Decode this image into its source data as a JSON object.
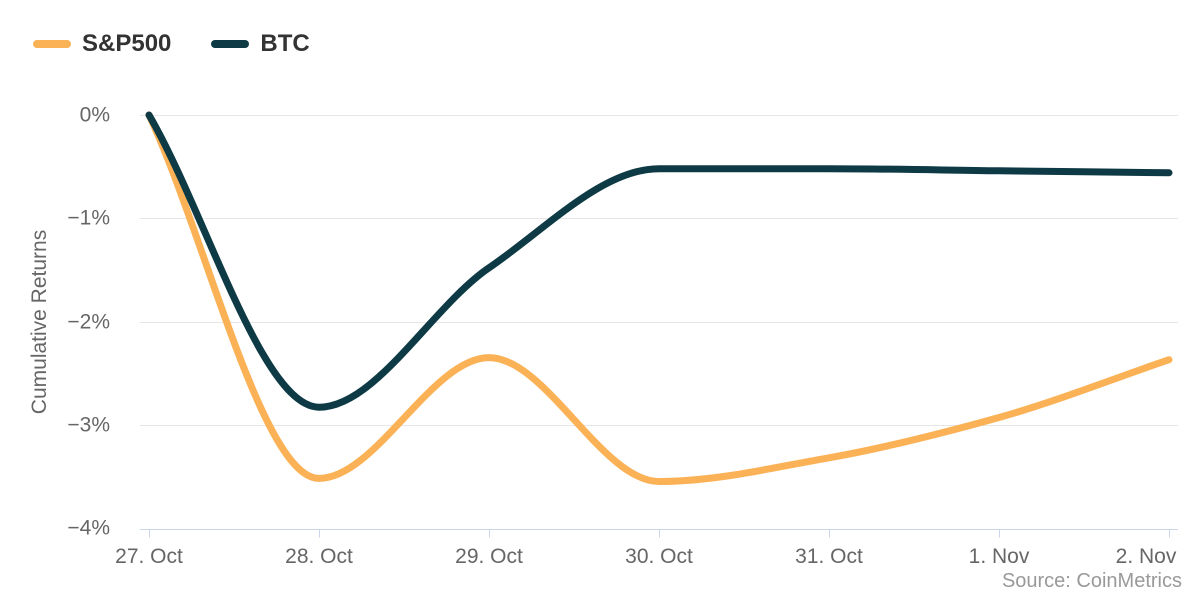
{
  "legend": {
    "items": [
      {
        "label": "S&P500",
        "color": "#fbb257"
      },
      {
        "label": "BTC",
        "color": "#0e3a46"
      }
    ]
  },
  "y_axis": {
    "title": "Cumulative Returns",
    "labels": [
      "0%",
      "−1%",
      "−2%",
      "−3%",
      "−4%"
    ]
  },
  "x_axis": {
    "labels": [
      "27. Oct",
      "28. Oct",
      "29. Oct",
      "30. Oct",
      "31. Oct",
      "1. Nov",
      "2. Nov"
    ]
  },
  "credits": {
    "text": "Source: CoinMetrics"
  },
  "colors": {
    "sp500": "#fbb257",
    "btc": "#0e3a46",
    "gridline": "#e6e6e6",
    "axis_line": "#ccd6eb",
    "tick_label": "#666666",
    "legend_text": "#333333",
    "credits_text": "#999999",
    "background": "#ffffff"
  },
  "chart_data": {
    "type": "line",
    "title": "",
    "xlabel": "",
    "ylabel": "Cumulative Returns",
    "categories": [
      "27. Oct",
      "28. Oct",
      "29. Oct",
      "30. Oct",
      "31. Oct",
      "1. Nov",
      "2. Nov"
    ],
    "series": [
      {
        "name": "S&P500",
        "color": "#fbb257",
        "values": [
          0,
          -3.52,
          -2.35,
          -3.55,
          -3.32,
          -2.93,
          -2.37
        ]
      },
      {
        "name": "BTC",
        "color": "#0e3a46",
        "values": [
          0,
          -2.83,
          -1.48,
          -0.52,
          -0.52,
          -0.54,
          -0.56
        ]
      }
    ],
    "y_unit": "percent",
    "ylim": [
      -4,
      0
    ],
    "y_ticks": [
      0,
      -1,
      -2,
      -3,
      -4
    ],
    "grid": "horizontal",
    "legend_position": "top-left",
    "line_style": "smooth-spline",
    "source": "CoinMetrics"
  }
}
